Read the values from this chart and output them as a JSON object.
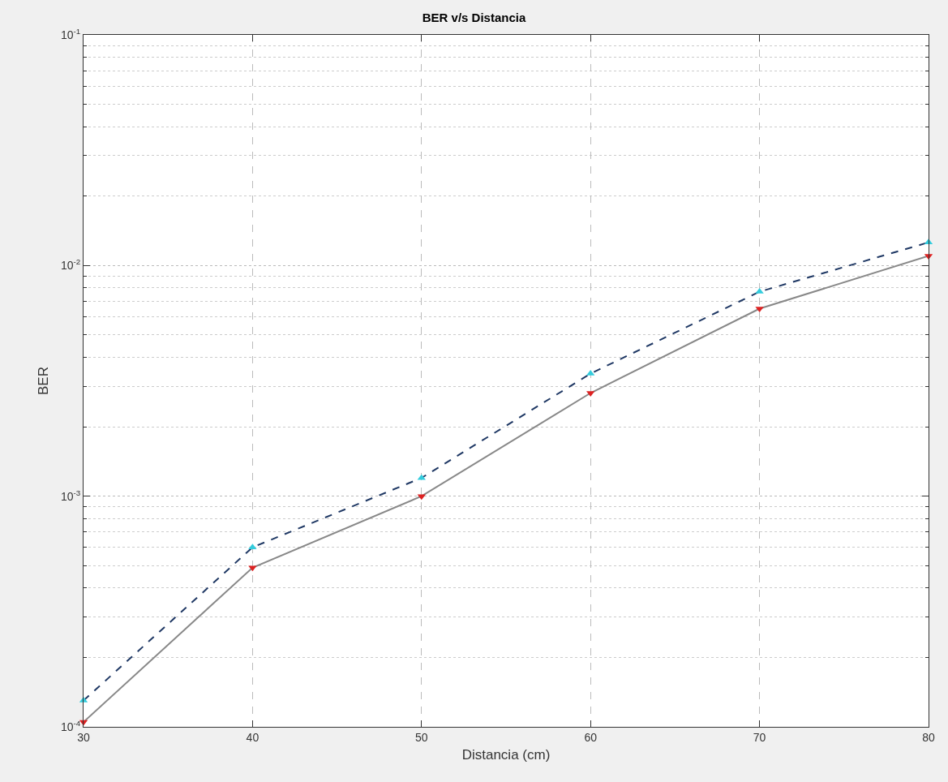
{
  "chart_data": {
    "type": "line",
    "title": "BER v/s Distancia",
    "xlabel": "Distancia (cm)",
    "ylabel": "BER",
    "x": [
      30,
      40,
      50,
      60,
      70,
      80
    ],
    "series": [
      {
        "color": "#1f3864",
        "colors": [
          "#33ccdd",
          "#33ccdd",
          "#33ccdd",
          "#33ccdd",
          "#33ccdd",
          "#33ccdd"
        ],
        "marker": "triangle-up",
        "line_style": "dashed",
        "values": [
          0.00013,
          0.0006,
          0.0012,
          0.0034,
          0.0077,
          0.0126
        ]
      },
      {
        "color": "#888888",
        "colors": [
          "#dd2222",
          "#dd2222",
          "#dd2222",
          "#dd2222",
          "#dd2222",
          "#dd2222"
        ],
        "marker": "triangle-down",
        "line_style": "solid",
        "values": [
          0.000105,
          0.00049,
          0.001,
          0.0028,
          0.0065,
          0.011
        ]
      }
    ],
    "xlim": [
      30,
      80
    ],
    "xticks": [
      30,
      40,
      50,
      60,
      70,
      80
    ],
    "log": "y",
    "ylim": [
      0.0001,
      0.1
    ],
    "yticks": [
      {
        "value": 0.0001,
        "label": "10$^{-4}$"
      },
      {
        "value": 0.001,
        "label": "10$^{-3}$"
      },
      {
        "value": 0.01,
        "label": "10$^{-2}$"
      },
      {
        "value": 0.1,
        "label": "10$^{-1}$"
      }
    ],
    "grid": true
  }
}
